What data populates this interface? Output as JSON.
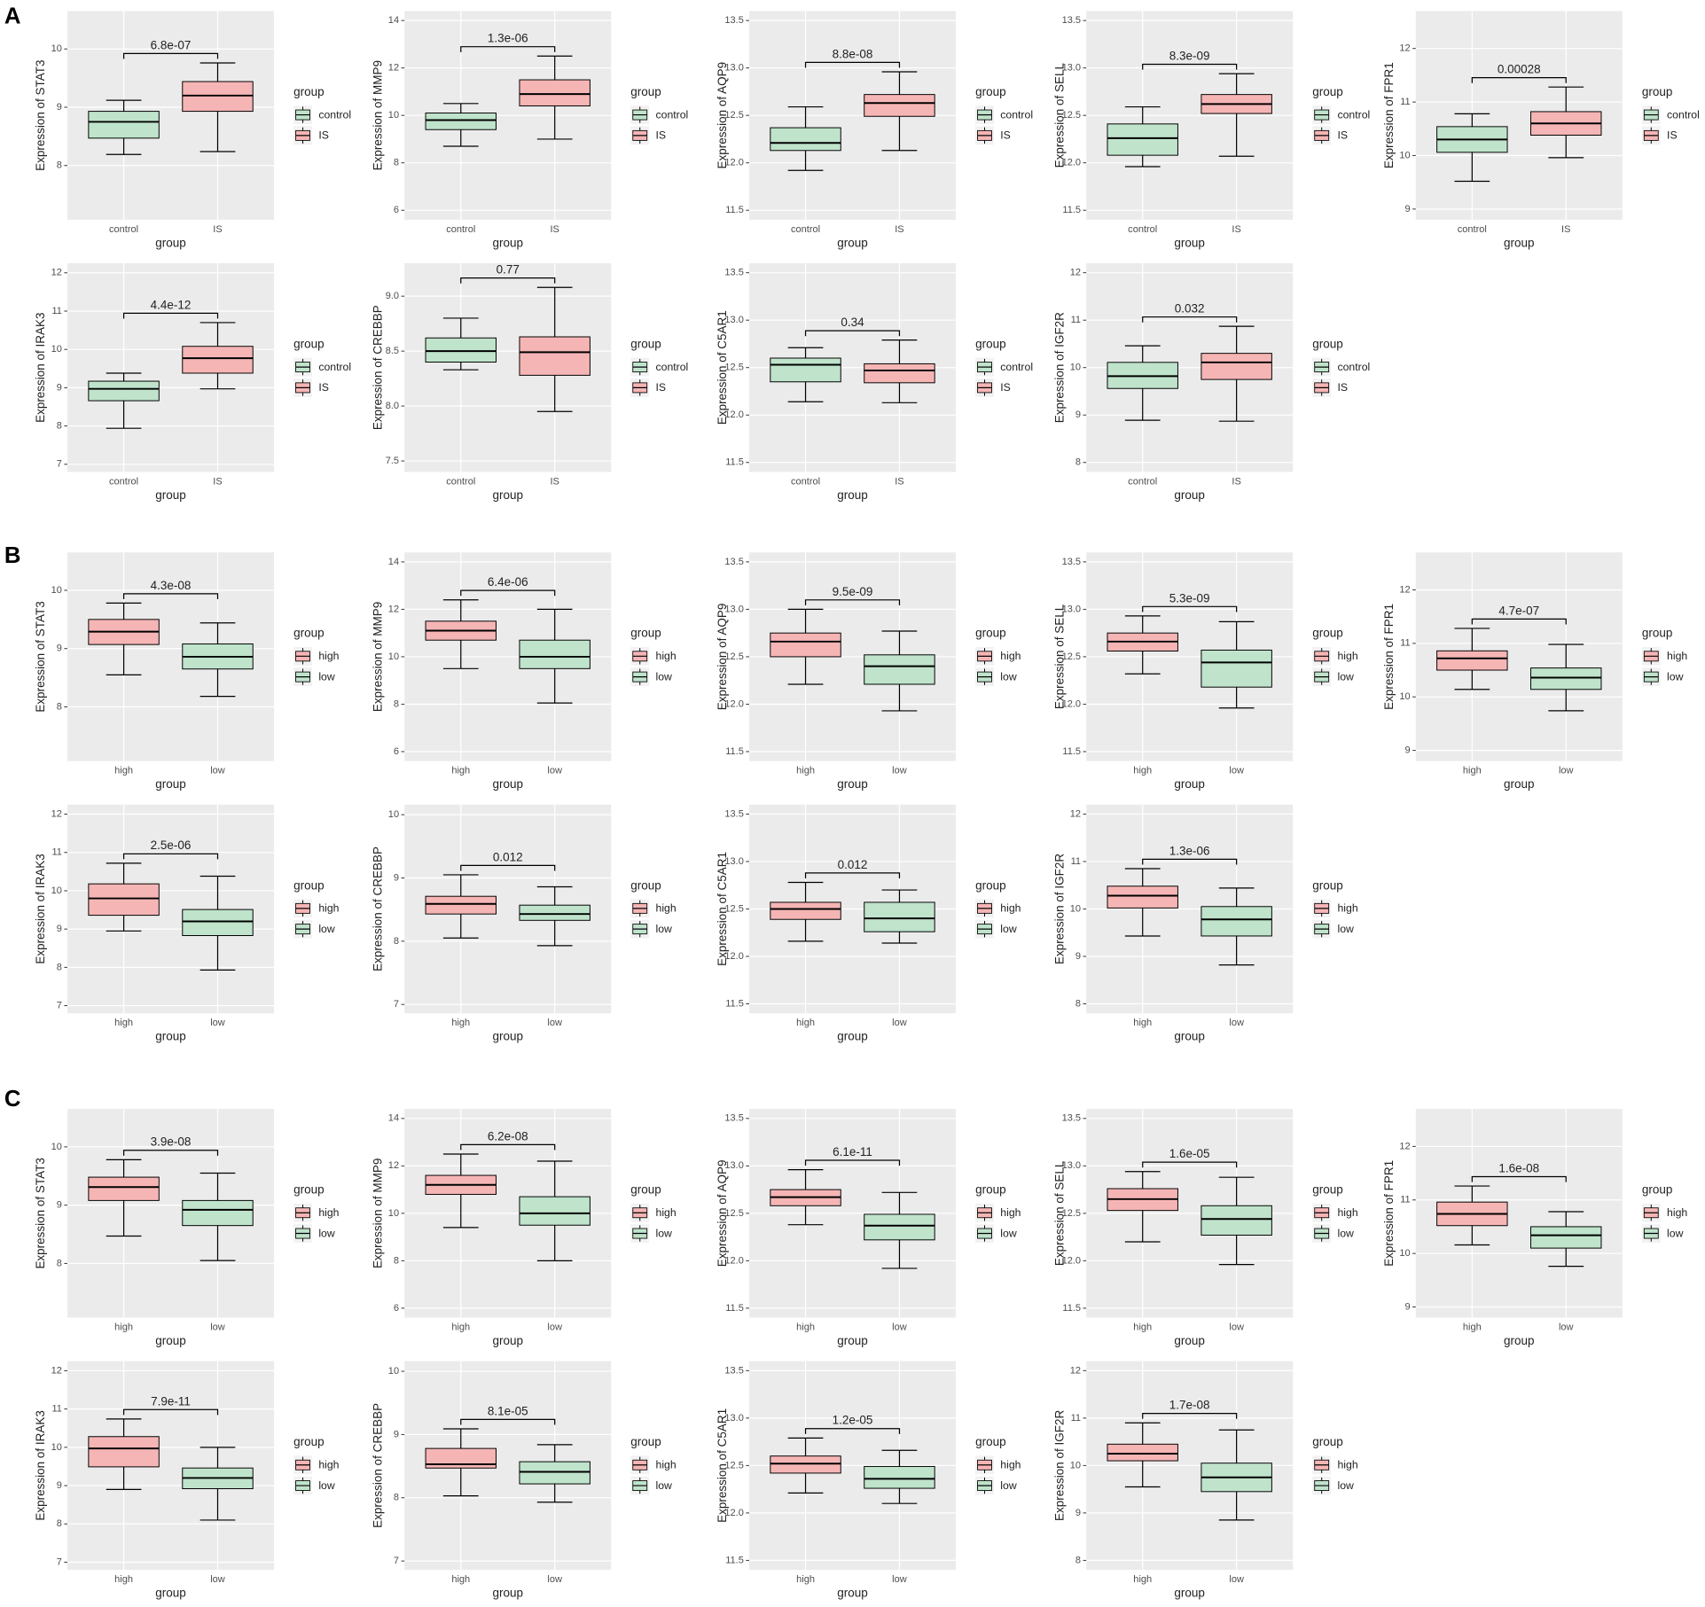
{
  "panel_labels": [
    "A",
    "B",
    "C"
  ],
  "chart_data": [
    {
      "type": "box",
      "ylabel": "Expression of STAT3",
      "xlabel": "group",
      "legend_title": "group",
      "categories": [
        "control",
        "IS"
      ],
      "colors": [
        "#bfe3cb",
        "#f6b5b5"
      ],
      "stats": [
        [
          8.19,
          8.47,
          8.75,
          8.93,
          9.12
        ],
        [
          8.24,
          8.93,
          9.2,
          9.44,
          9.76
        ]
      ],
      "annotation": "6.8e-07",
      "ylim": [
        7.07,
        10.65
      ],
      "yticks": [
        8,
        9,
        10
      ],
      "grid": true
    },
    {
      "type": "box",
      "ylabel": "Expression of MMP9",
      "xlabel": "group",
      "legend_title": "group",
      "categories": [
        "control",
        "IS"
      ],
      "colors": [
        "#bfe3cb",
        "#f6b5b5"
      ],
      "stats": [
        [
          8.7,
          9.4,
          9.8,
          10.1,
          10.5
        ],
        [
          9.0,
          10.4,
          10.9,
          11.5,
          12.5
        ]
      ],
      "annotation": "1.3e-06",
      "ylim": [
        5.6,
        14.4
      ],
      "yticks": [
        6,
        8,
        10,
        12,
        14
      ],
      "grid": true
    },
    {
      "type": "box",
      "ylabel": "Expression of AQP9",
      "xlabel": "group",
      "legend_title": "group",
      "categories": [
        "control",
        "IS"
      ],
      "colors": [
        "#bfe3cb",
        "#f6b5b5"
      ],
      "stats": [
        [
          11.92,
          12.13,
          12.21,
          12.37,
          12.59
        ],
        [
          12.13,
          12.49,
          12.63,
          12.72,
          12.96
        ]
      ],
      "annotation": "8.8e-08",
      "ylim": [
        11.4,
        13.6
      ],
      "yticks": [
        11.5,
        {
          "value": 12,
          "label": "12.0"
        },
        12.5,
        {
          "value": 13,
          "label": "13.0"
        },
        13.5
      ],
      "grid": true
    },
    {
      "type": "box",
      "ylabel": "Expression of SELL",
      "xlabel": "group",
      "legend_title": "group",
      "categories": [
        "control",
        "IS"
      ],
      "colors": [
        "#bfe3cb",
        "#f6b5b5"
      ],
      "stats": [
        [
          11.96,
          12.08,
          12.26,
          12.41,
          12.59
        ],
        [
          12.07,
          12.52,
          12.62,
          12.72,
          12.94
        ]
      ],
      "annotation": "8.3e-09",
      "ylim": [
        11.4,
        13.6
      ],
      "yticks": [
        11.5,
        {
          "value": 12,
          "label": "12.0"
        },
        12.5,
        {
          "value": 13,
          "label": "13.0"
        },
        13.5
      ],
      "grid": true
    },
    {
      "type": "box",
      "ylabel": "Expression of FPR1",
      "xlabel": "group",
      "legend_title": "group",
      "categories": [
        "control",
        "IS"
      ],
      "colors": [
        "#bfe3cb",
        "#f6b5b5"
      ],
      "stats": [
        [
          9.52,
          10.06,
          10.3,
          10.54,
          10.78
        ],
        [
          9.96,
          10.38,
          10.6,
          10.82,
          11.28
        ]
      ],
      "annotation": "0.00028",
      "ylim": [
        8.8,
        12.7
      ],
      "yticks": [
        9,
        10,
        11,
        12
      ],
      "grid": true
    },
    {
      "type": "box",
      "ylabel": "Expression of IRAK3",
      "xlabel": "group",
      "legend_title": "group",
      "categories": [
        "control",
        "IS"
      ],
      "colors": [
        "#bfe3cb",
        "#f6b5b5"
      ],
      "stats": [
        [
          7.94,
          8.66,
          8.97,
          9.17,
          9.38
        ],
        [
          8.97,
          9.38,
          9.77,
          10.08,
          10.7
        ]
      ],
      "annotation": "4.4e-12",
      "ylim": [
        6.8,
        12.25
      ],
      "yticks": [
        7,
        8,
        9,
        10,
        11,
        12
      ],
      "grid": true
    },
    {
      "type": "box",
      "ylabel": "Expression of CREBBP",
      "xlabel": "group",
      "legend_title": "group",
      "categories": [
        "control",
        "IS"
      ],
      "colors": [
        "#bfe3cb",
        "#f6b5b5"
      ],
      "stats": [
        [
          8.33,
          8.4,
          8.5,
          8.62,
          8.8
        ],
        [
          7.95,
          8.28,
          8.49,
          8.63,
          9.08
        ]
      ],
      "annotation": "0.77",
      "ylim": [
        7.4,
        9.3
      ],
      "yticks": [
        7.5,
        {
          "value": 8,
          "label": "8.0"
        },
        8.5,
        {
          "value": 9,
          "label": "9.0"
        }
      ],
      "grid": true
    },
    {
      "type": "box",
      "ylabel": "Expression of C5AR1",
      "xlabel": "group",
      "legend_title": "group",
      "categories": [
        "control",
        "IS"
      ],
      "colors": [
        "#bfe3cb",
        "#f6b5b5"
      ],
      "stats": [
        [
          12.14,
          12.35,
          12.53,
          12.6,
          12.71
        ],
        [
          12.13,
          12.34,
          12.47,
          12.54,
          12.79
        ]
      ],
      "annotation": "0.34",
      "ylim": [
        11.4,
        13.6
      ],
      "yticks": [
        11.5,
        {
          "value": 12,
          "label": "12.0"
        },
        12.5,
        {
          "value": 13,
          "label": "13.0"
        },
        13.5
      ],
      "grid": true
    },
    {
      "type": "box",
      "ylabel": "Expression of IGF2R",
      "xlabel": "group",
      "legend_title": "group",
      "categories": [
        "control",
        "IS"
      ],
      "colors": [
        "#bfe3cb",
        "#f6b5b5"
      ],
      "stats": [
        [
          8.89,
          9.56,
          9.82,
          10.11,
          10.46
        ],
        [
          8.87,
          9.75,
          10.11,
          10.3,
          10.87
        ]
      ],
      "annotation": "0.032",
      "ylim": [
        7.8,
        12.2
      ],
      "yticks": [
        8,
        9,
        10,
        11,
        12
      ],
      "grid": true
    },
    {
      "type": "box",
      "ylabel": "Expression of STAT3",
      "xlabel": "group",
      "legend_title": "group",
      "categories": [
        "high",
        "low"
      ],
      "colors": [
        "#f6b5b5",
        "#bfe3cb"
      ],
      "stats": [
        [
          8.55,
          9.07,
          9.29,
          9.5,
          9.78
        ],
        [
          8.18,
          8.65,
          8.86,
          9.08,
          9.44
        ]
      ],
      "annotation": "4.3e-08",
      "ylim": [
        7.07,
        10.65
      ],
      "yticks": [
        8,
        9,
        10
      ],
      "grid": true
    },
    {
      "type": "box",
      "ylabel": "Expression of MMP9",
      "xlabel": "group",
      "legend_title": "group",
      "categories": [
        "high",
        "low"
      ],
      "colors": [
        "#f6b5b5",
        "#bfe3cb"
      ],
      "stats": [
        [
          9.5,
          10.7,
          11.1,
          11.5,
          12.4
        ],
        [
          8.05,
          9.5,
          10.0,
          10.7,
          12.0
        ]
      ],
      "annotation": "6.4e-06",
      "ylim": [
        5.6,
        14.4
      ],
      "yticks": [
        6,
        8,
        10,
        12,
        14
      ],
      "grid": true
    },
    {
      "type": "box",
      "ylabel": "Expression of AQP9",
      "xlabel": "group",
      "legend_title": "group",
      "categories": [
        "high",
        "low"
      ],
      "colors": [
        "#f6b5b5",
        "#bfe3cb"
      ],
      "stats": [
        [
          12.21,
          12.5,
          12.66,
          12.75,
          13.0
        ],
        [
          11.93,
          12.21,
          12.4,
          12.52,
          12.77
        ]
      ],
      "annotation": "9.5e-09",
      "ylim": [
        11.4,
        13.6
      ],
      "yticks": [
        11.5,
        {
          "value": 12,
          "label": "12.0"
        },
        12.5,
        {
          "value": 13,
          "label": "13.0"
        },
        13.5
      ],
      "grid": true
    },
    {
      "type": "box",
      "ylabel": "Expression of SELL",
      "xlabel": "group",
      "legend_title": "group",
      "categories": [
        "high",
        "low"
      ],
      "colors": [
        "#f6b5b5",
        "#bfe3cb"
      ],
      "stats": [
        [
          12.32,
          12.56,
          12.66,
          12.75,
          12.93
        ],
        [
          11.96,
          12.18,
          12.44,
          12.57,
          12.87
        ]
      ],
      "annotation": "5.3e-09",
      "ylim": [
        11.4,
        13.6
      ],
      "yticks": [
        11.5,
        {
          "value": 12,
          "label": "12.0"
        },
        12.5,
        {
          "value": 13,
          "label": "13.0"
        },
        13.5
      ],
      "grid": true
    },
    {
      "type": "box",
      "ylabel": "Expression of FPR1",
      "xlabel": "group",
      "legend_title": "group",
      "categories": [
        "high",
        "low"
      ],
      "colors": [
        "#f6b5b5",
        "#bfe3cb"
      ],
      "stats": [
        [
          10.14,
          10.5,
          10.72,
          10.86,
          11.28
        ],
        [
          9.74,
          10.14,
          10.36,
          10.54,
          10.98
        ]
      ],
      "annotation": "4.7e-07",
      "ylim": [
        8.8,
        12.7
      ],
      "yticks": [
        9,
        10,
        11,
        12
      ],
      "grid": true
    },
    {
      "type": "box",
      "ylabel": "Expression of IRAK3",
      "xlabel": "group",
      "legend_title": "group",
      "categories": [
        "high",
        "low"
      ],
      "colors": [
        "#f6b5b5",
        "#bfe3cb"
      ],
      "stats": [
        [
          8.95,
          9.36,
          9.8,
          10.18,
          10.72
        ],
        [
          7.93,
          8.83,
          9.2,
          9.51,
          10.38
        ]
      ],
      "annotation": "2.5e-06",
      "ylim": [
        6.8,
        12.25
      ],
      "yticks": [
        7,
        8,
        9,
        10,
        11,
        12
      ],
      "grid": true
    },
    {
      "type": "box",
      "ylabel": "Expression of CREBBP",
      "xlabel": "group",
      "legend_title": "group",
      "categories": [
        "high",
        "low"
      ],
      "colors": [
        "#f6b5b5",
        "#bfe3cb"
      ],
      "stats": [
        [
          8.05,
          8.43,
          8.59,
          8.71,
          9.05
        ],
        [
          7.93,
          8.33,
          8.43,
          8.57,
          8.86
        ]
      ],
      "annotation": "0.012",
      "ylim": [
        6.86,
        10.16
      ],
      "yticks": [
        7,
        8,
        9,
        10
      ],
      "grid": true
    },
    {
      "type": "box",
      "ylabel": "Expression of C5AR1",
      "xlabel": "group",
      "legend_title": "group",
      "categories": [
        "high",
        "low"
      ],
      "colors": [
        "#f6b5b5",
        "#bfe3cb"
      ],
      "stats": [
        [
          12.16,
          12.39,
          12.5,
          12.57,
          12.78
        ],
        [
          12.14,
          12.26,
          12.4,
          12.57,
          12.7
        ]
      ],
      "annotation": "0.012",
      "ylim": [
        11.4,
        13.6
      ],
      "yticks": [
        11.5,
        {
          "value": 12,
          "label": "12.0"
        },
        12.5,
        {
          "value": 13,
          "label": "13.0"
        },
        13.5
      ],
      "grid": true
    },
    {
      "type": "box",
      "ylabel": "Expression of IGF2R",
      "xlabel": "group",
      "legend_title": "group",
      "categories": [
        "high",
        "low"
      ],
      "colors": [
        "#f6b5b5",
        "#bfe3cb"
      ],
      "stats": [
        [
          9.43,
          10.02,
          10.28,
          10.48,
          10.85
        ],
        [
          8.82,
          9.43,
          9.78,
          10.05,
          10.44
        ]
      ],
      "annotation": "1.3e-06",
      "ylim": [
        7.8,
        12.2
      ],
      "yticks": [
        8,
        9,
        10,
        11,
        12
      ],
      "grid": true
    },
    {
      "type": "box",
      "ylabel": "Expression of STAT3",
      "xlabel": "group",
      "legend_title": "group",
      "categories": [
        "high",
        "low"
      ],
      "colors": [
        "#f6b5b5",
        "#bfe3cb"
      ],
      "stats": [
        [
          8.47,
          9.08,
          9.31,
          9.48,
          9.78
        ],
        [
          8.05,
          8.65,
          8.92,
          9.08,
          9.55
        ]
      ],
      "annotation": "3.9e-08",
      "ylim": [
        7.07,
        10.65
      ],
      "yticks": [
        8,
        9,
        10
      ],
      "grid": true
    },
    {
      "type": "box",
      "ylabel": "Expression of MMP9",
      "xlabel": "group",
      "legend_title": "group",
      "categories": [
        "high",
        "low"
      ],
      "colors": [
        "#f6b5b5",
        "#bfe3cb"
      ],
      "stats": [
        [
          9.4,
          10.8,
          11.2,
          11.6,
          12.5
        ],
        [
          8.0,
          9.5,
          10.0,
          10.7,
          12.2
        ]
      ],
      "annotation": "6.2e-08",
      "ylim": [
        5.6,
        14.4
      ],
      "yticks": [
        6,
        8,
        10,
        12,
        14
      ],
      "grid": true
    },
    {
      "type": "box",
      "ylabel": "Expression of AQP9",
      "xlabel": "group",
      "legend_title": "group",
      "categories": [
        "high",
        "low"
      ],
      "colors": [
        "#f6b5b5",
        "#bfe3cb"
      ],
      "stats": [
        [
          12.38,
          12.58,
          12.67,
          12.75,
          12.96
        ],
        [
          11.92,
          12.22,
          12.37,
          12.49,
          12.72
        ]
      ],
      "annotation": "6.1e-11",
      "ylim": [
        11.4,
        13.6
      ],
      "yticks": [
        11.5,
        {
          "value": 12,
          "label": "12.0"
        },
        12.5,
        {
          "value": 13,
          "label": "13.0"
        },
        13.5
      ],
      "grid": true
    },
    {
      "type": "box",
      "ylabel": "Expression of SELL",
      "xlabel": "group",
      "legend_title": "group",
      "categories": [
        "high",
        "low"
      ],
      "colors": [
        "#f6b5b5",
        "#bfe3cb"
      ],
      "stats": [
        [
          12.2,
          12.53,
          12.65,
          12.76,
          12.94
        ],
        [
          11.96,
          12.27,
          12.44,
          12.58,
          12.88
        ]
      ],
      "annotation": "1.6e-05",
      "ylim": [
        11.4,
        13.6
      ],
      "yticks": [
        11.5,
        {
          "value": 12,
          "label": "12.0"
        },
        12.5,
        {
          "value": 13,
          "label": "13.0"
        },
        13.5
      ],
      "grid": true
    },
    {
      "type": "box",
      "ylabel": "Expression of FPR1",
      "xlabel": "group",
      "legend_title": "group",
      "categories": [
        "high",
        "low"
      ],
      "colors": [
        "#f6b5b5",
        "#bfe3cb"
      ],
      "stats": [
        [
          10.16,
          10.52,
          10.74,
          10.96,
          11.26
        ],
        [
          9.76,
          10.1,
          10.34,
          10.5,
          10.78
        ]
      ],
      "annotation": "1.6e-08",
      "ylim": [
        8.8,
        12.7
      ],
      "yticks": [
        9,
        10,
        11,
        12
      ],
      "grid": true
    },
    {
      "type": "box",
      "ylabel": "Expression of IRAK3",
      "xlabel": "group",
      "legend_title": "group",
      "categories": [
        "high",
        "low"
      ],
      "colors": [
        "#f6b5b5",
        "#bfe3cb"
      ],
      "stats": [
        [
          8.9,
          9.49,
          9.97,
          10.28,
          10.74
        ],
        [
          8.1,
          8.92,
          9.2,
          9.46,
          10.0
        ]
      ],
      "annotation": "7.9e-11",
      "ylim": [
        6.8,
        12.25
      ],
      "yticks": [
        7,
        8,
        9,
        10,
        11,
        12
      ],
      "grid": true
    },
    {
      "type": "box",
      "ylabel": "Expression of CREBBP",
      "xlabel": "group",
      "legend_title": "group",
      "categories": [
        "high",
        "low"
      ],
      "colors": [
        "#f6b5b5",
        "#bfe3cb"
      ],
      "stats": [
        [
          8.03,
          8.47,
          8.53,
          8.78,
          9.09
        ],
        [
          7.93,
          8.22,
          8.41,
          8.57,
          8.84
        ]
      ],
      "annotation": "8.1e-05",
      "ylim": [
        6.86,
        10.16
      ],
      "yticks": [
        7,
        8,
        9,
        10
      ],
      "grid": true
    },
    {
      "type": "box",
      "ylabel": "Expression of C5AR1",
      "xlabel": "group",
      "legend_title": "group",
      "categories": [
        "high",
        "low"
      ],
      "colors": [
        "#f6b5b5",
        "#bfe3cb"
      ],
      "stats": [
        [
          12.21,
          12.42,
          12.52,
          12.6,
          12.79
        ],
        [
          12.1,
          12.26,
          12.36,
          12.49,
          12.66
        ]
      ],
      "annotation": "1.2e-05",
      "ylim": [
        11.4,
        13.6
      ],
      "yticks": [
        11.5,
        {
          "value": 12,
          "label": "12.0"
        },
        12.5,
        {
          "value": 13,
          "label": "13.0"
        },
        13.5
      ],
      "grid": true
    },
    {
      "type": "box",
      "ylabel": "Expression of IGF2R",
      "xlabel": "group",
      "legend_title": "group",
      "categories": [
        "high",
        "low"
      ],
      "colors": [
        "#f6b5b5",
        "#bfe3cb"
      ],
      "stats": [
        [
          9.55,
          10.1,
          10.25,
          10.45,
          10.9
        ],
        [
          8.85,
          9.45,
          9.75,
          10.05,
          10.75
        ]
      ],
      "annotation": "1.7e-08",
      "ylim": [
        7.8,
        12.2
      ],
      "yticks": [
        8,
        9,
        10,
        11,
        12
      ],
      "grid": true
    }
  ]
}
